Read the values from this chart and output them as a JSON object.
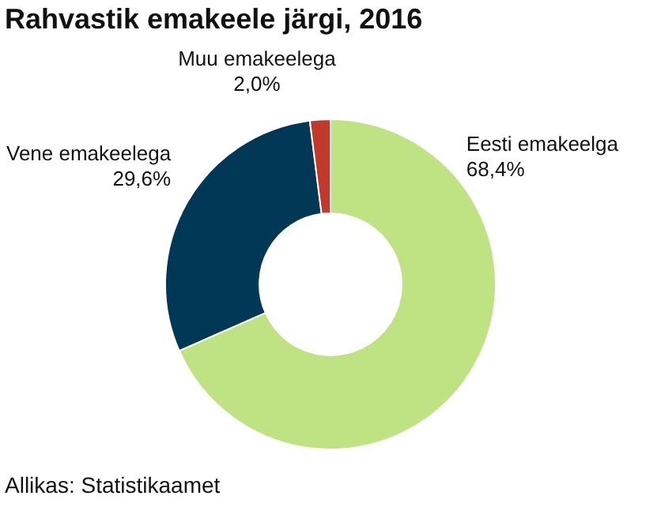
{
  "chart_data": {
    "type": "donut",
    "title": "Rahvastik emakeele järgi, 2016",
    "categories": [
      "Eesti emakeelga",
      "Vene emakeelega",
      "Muu emakeelega"
    ],
    "values": [
      68.4,
      29.6,
      2.0
    ],
    "value_labels": [
      "68,4%",
      "29,6%",
      "2,0%"
    ],
    "colors": [
      "#bfe283",
      "#003855",
      "#c0392b"
    ],
    "legend": false,
    "annotations": [
      "Allikas: Statistikaamet"
    ]
  }
}
